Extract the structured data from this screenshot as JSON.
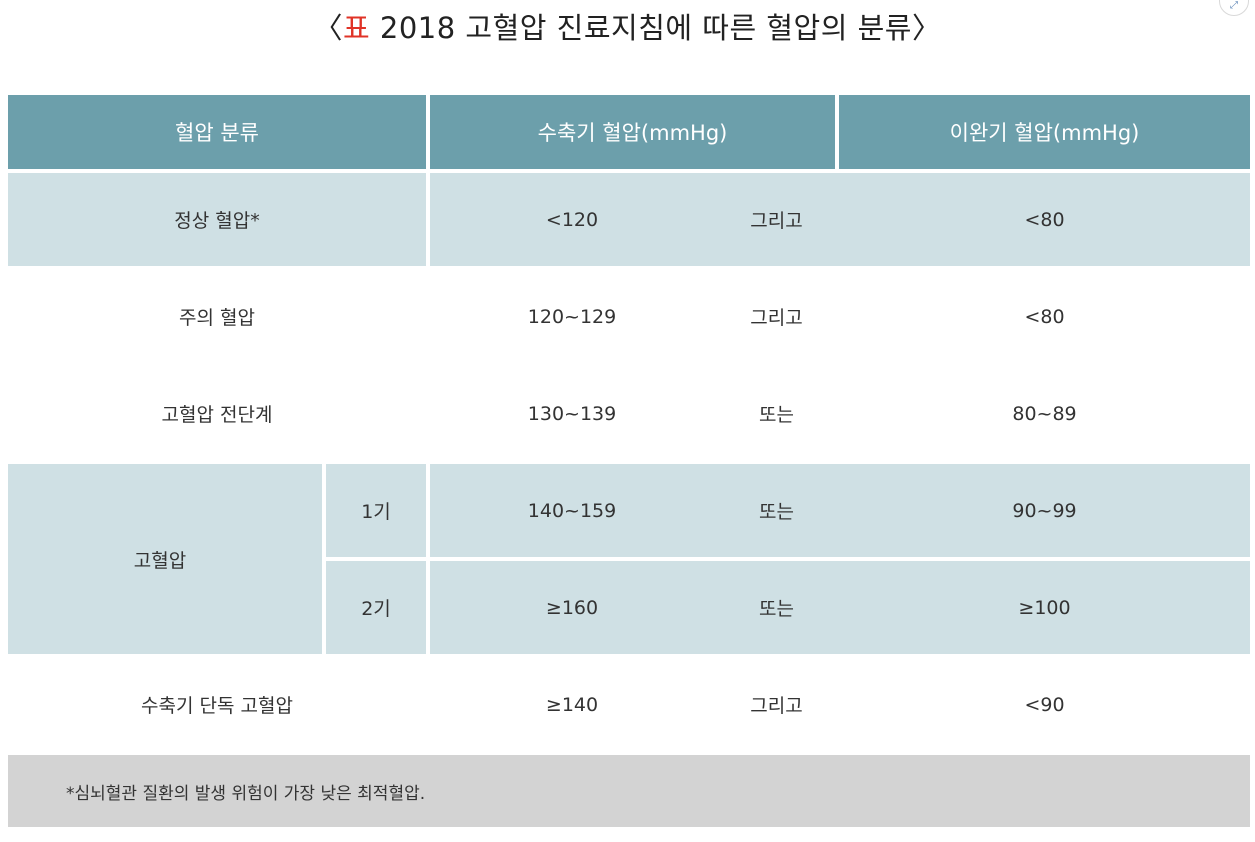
{
  "title": {
    "prefix": "표",
    "text": "2018 고혈압 진료지침에 따른 혈압의 분류",
    "open_bracket": "〈",
    "close_bracket": "〉"
  },
  "table": {
    "headers": {
      "category": "혈압 분류",
      "systolic": "수축기 혈압(mmHg)",
      "diastolic": "이완기 혈압(mmHg)"
    },
    "rows": [
      {
        "category": "정상 혈압*",
        "systolic": "<120",
        "connector": "그리고",
        "diastolic": "<80"
      },
      {
        "category": "주의 혈압",
        "systolic": "120~129",
        "connector": "그리고",
        "diastolic": "<80"
      },
      {
        "category": "고혈압 전단계",
        "systolic": "130~139",
        "connector": "또는",
        "diastolic": "80~89"
      },
      {
        "category": "고혈압",
        "stage": "1기",
        "systolic": "140~159",
        "connector": "또는",
        "diastolic": "90~99"
      },
      {
        "stage": "2기",
        "systolic": "≥160",
        "connector": "또는",
        "diastolic": "≥100"
      },
      {
        "category": "수축기 단독 고혈압",
        "systolic": "≥140",
        "connector": "그리고",
        "diastolic": "<90"
      }
    ],
    "footnote": "*심뇌혈관 질환의 발생 위험이 가장 낮은 최적혈압."
  },
  "widget": {
    "icon": "expand-icon",
    "glyph": "⤢"
  },
  "colors": {
    "header_bg": "#6c9fab",
    "shade_bg": "#cfe0e4",
    "note_bg": "#d3d3d3",
    "title_prefix": "#e03327"
  }
}
